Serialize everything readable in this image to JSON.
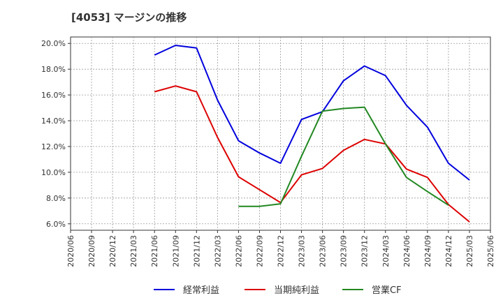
{
  "chart_data": {
    "type": "line",
    "title": "[4053]  マージンの推移",
    "categories": [
      "2020/06",
      "2020/09",
      "2020/12",
      "2021/03",
      "2021/06",
      "2021/09",
      "2021/12",
      "2022/03",
      "2022/06",
      "2022/09",
      "2022/12",
      "2023/03",
      "2023/06",
      "2023/09",
      "2023/12",
      "2024/03",
      "2024/06",
      "2024/09",
      "2024/12",
      "2025/03",
      "2025/06"
    ],
    "y_ticks": [
      "6.0%",
      "8.0%",
      "10.0%",
      "12.0%",
      "14.0%",
      "16.0%",
      "18.0%",
      "20.0%"
    ],
    "ylim": [
      5.5,
      20.5
    ],
    "grid": true,
    "legend_position": "bottom",
    "series": [
      {
        "name": "経常利益",
        "color": "#0000dd",
        "values": [
          null,
          null,
          null,
          null,
          19.1,
          19.85,
          19.65,
          15.6,
          12.45,
          11.5,
          10.7,
          14.1,
          14.7,
          17.1,
          18.25,
          17.5,
          15.2,
          13.5,
          10.7,
          9.4,
          null
        ]
      },
      {
        "name": "当期純利益",
        "color": "#dd0000",
        "values": [
          null,
          null,
          null,
          null,
          16.25,
          16.7,
          16.25,
          12.7,
          9.65,
          8.65,
          7.65,
          9.8,
          10.3,
          11.7,
          12.55,
          12.2,
          10.25,
          9.6,
          7.5,
          6.15,
          null
        ]
      },
      {
        "name": "営業CF",
        "color": "#228822",
        "values": [
          null,
          null,
          null,
          null,
          null,
          null,
          null,
          null,
          7.35,
          7.35,
          7.55,
          11.25,
          14.75,
          14.95,
          15.05,
          12.2,
          9.6,
          8.5,
          7.45,
          null,
          null
        ]
      }
    ]
  }
}
